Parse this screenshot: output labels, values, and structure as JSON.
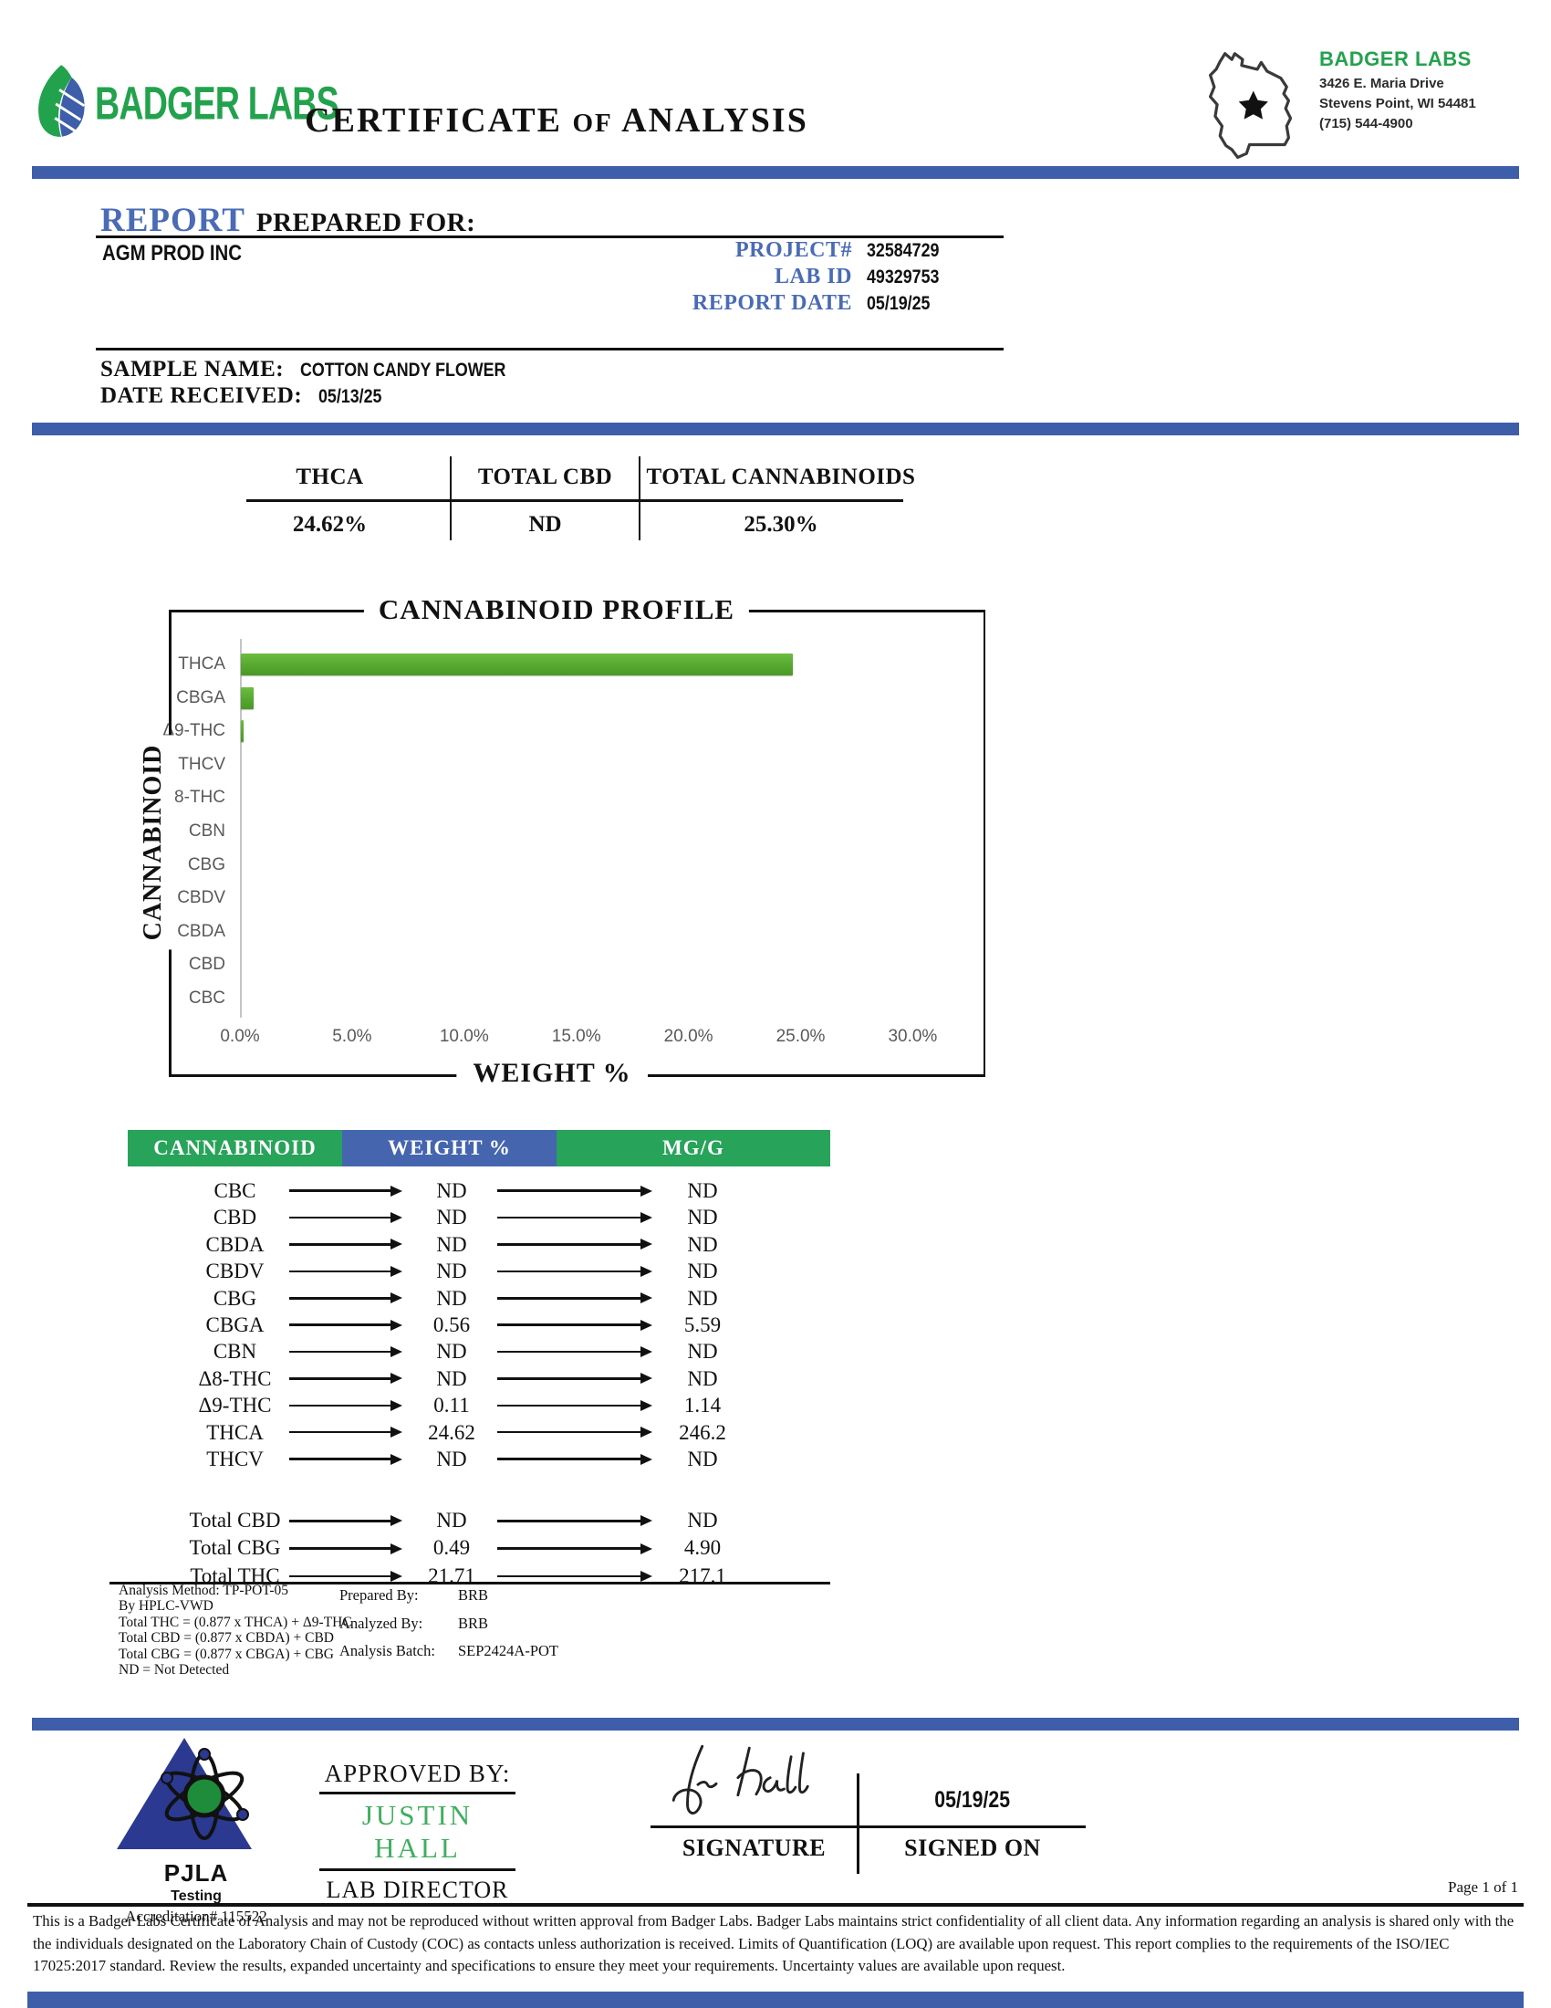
{
  "header": {
    "logo_text": "BADGER LABS",
    "title_part1": "CERTIFICATE",
    "title_of": "OF",
    "title_part2": "ANALYSIS",
    "lab_info": {
      "name": "BADGER LABS",
      "address_line1": "3426 E. Maria Drive",
      "address_line2": "Stevens Point, WI 54481",
      "phone": "(715) 544-4900"
    }
  },
  "colors": {
    "accent_blue": "#3F5EA9",
    "table_header_green": "#28A35A",
    "table_header_blue": "#4565AF",
    "bar_green": "#55A82F",
    "brand_green": "#23A24D",
    "report_blue": "#4A6BB5",
    "approver_green": "#3FAE5E",
    "pjla_blue": "#2B3990"
  },
  "report_info": {
    "report_label": "REPORT",
    "prepared_for_label": "PREPARED FOR:",
    "client_name": "AGM PROD INC",
    "project_label": "PROJECT#",
    "project_number": "32584729",
    "lab_id_label": "LAB ID",
    "lab_id": "49329753",
    "report_date_label": "REPORT DATE",
    "report_date": "05/19/25",
    "sample_name_label": "SAMPLE NAME:",
    "sample_name": "COTTON CANDY FLOWER",
    "date_received_label": "DATE RECEIVED:",
    "date_received": "05/13/25"
  },
  "summary": {
    "columns": [
      {
        "label": "THCA",
        "value": "24.62%"
      },
      {
        "label": "TOTAL CBD",
        "value": "ND"
      },
      {
        "label": "TOTAL CANNABINOIDS",
        "value": "25.30%"
      }
    ]
  },
  "chart_data": {
    "type": "bar",
    "orientation": "horizontal",
    "title": "CANNABINOID PROFILE",
    "xlabel": "WEIGHT %",
    "ylabel": "CANNABINOID",
    "categories": [
      "THCA",
      "CBGA",
      "Δ9-THC",
      "THCV",
      "Δ8-THC",
      "CBN",
      "CBG",
      "CBDV",
      "CBDA",
      "CBD",
      "CBC"
    ],
    "values": [
      24.62,
      0.56,
      0.11,
      0,
      0,
      0,
      0,
      0,
      0,
      0,
      0
    ],
    "xlim": [
      0,
      30
    ],
    "x_ticks": [
      "0.0%",
      "5.0%",
      "10.0%",
      "15.0%",
      "20.0%",
      "25.0%",
      "30.0%"
    ],
    "grid": false,
    "legend": "none",
    "bar_color": "#55A82F"
  },
  "results_table": {
    "headers": [
      "CANNABINOID",
      "WEIGHT %",
      "MG/G"
    ],
    "rows": [
      {
        "name": "CBC",
        "weight": "ND",
        "mgg": "ND"
      },
      {
        "name": "CBD",
        "weight": "ND",
        "mgg": "ND"
      },
      {
        "name": "CBDA",
        "weight": "ND",
        "mgg": "ND"
      },
      {
        "name": "CBDV",
        "weight": "ND",
        "mgg": "ND"
      },
      {
        "name": "CBG",
        "weight": "ND",
        "mgg": "ND"
      },
      {
        "name": "CBGA",
        "weight": "0.56",
        "mgg": "5.59"
      },
      {
        "name": "CBN",
        "weight": "ND",
        "mgg": "ND"
      },
      {
        "name": "Δ8-THC",
        "weight": "ND",
        "mgg": "ND"
      },
      {
        "name": "Δ9-THC",
        "weight": "0.11",
        "mgg": "1.14"
      },
      {
        "name": "THCA",
        "weight": "24.62",
        "mgg": "246.2"
      },
      {
        "name": "THCV",
        "weight": "ND",
        "mgg": "ND"
      }
    ],
    "total_rows": [
      {
        "name": "Total CBD",
        "weight": "ND",
        "mgg": "ND"
      },
      {
        "name": "Total CBG",
        "weight": "0.49",
        "mgg": "4.90"
      },
      {
        "name": "Total THC",
        "weight": "21.71",
        "mgg": "217.1"
      }
    ]
  },
  "footnotes": {
    "left": [
      "Analysis Method: TP-POT-05",
      "By HPLC-VWD",
      "Total THC = (0.877 x  THCA) + Δ9-THC",
      "Total CBD = (0.877 x  CBDA) + CBD",
      "Total CBG = (0.877 x  CBGA) + CBG",
      "ND = Not Detected"
    ],
    "right": [
      {
        "label": "Prepared By:",
        "value": "BRB"
      },
      {
        "label": "Analyzed By:",
        "value": "BRB"
      },
      {
        "label": "Analysis Batch:",
        "value": "SEP2424A-POT"
      }
    ]
  },
  "approval": {
    "approved_by_label": "APPROVED BY:",
    "approver_name": "JUSTIN HALL",
    "approver_title": "LAB DIRECTOR",
    "signature_label": "SIGNATURE",
    "signed_on_label": "SIGNED ON",
    "signed_date": "05/19/25"
  },
  "accreditation": {
    "org": "PJLA",
    "program": "Testing",
    "number_line": "Accreditation# 115522"
  },
  "page_label": "Page 1 of 1",
  "disclaimer": "This is a Badger Labs Certificate of  Analysis and may not be reproduced without written approval from Badger Labs. Badger Labs maintains strict confidentiality of  all client data. Any information regarding an analysis is shared only with the the individuals designated on the Laboratory Chain of  Custody (COC) as contacts unless authorization is received. Limits of  Quantification (LOQ) are available upon request. This report complies to the requirements of  the ISO/IEC 17025:2017 standard. Review the results, expanded uncertainty and specifications to ensure they meet your requirements. Uncertainty values are available upon request."
}
